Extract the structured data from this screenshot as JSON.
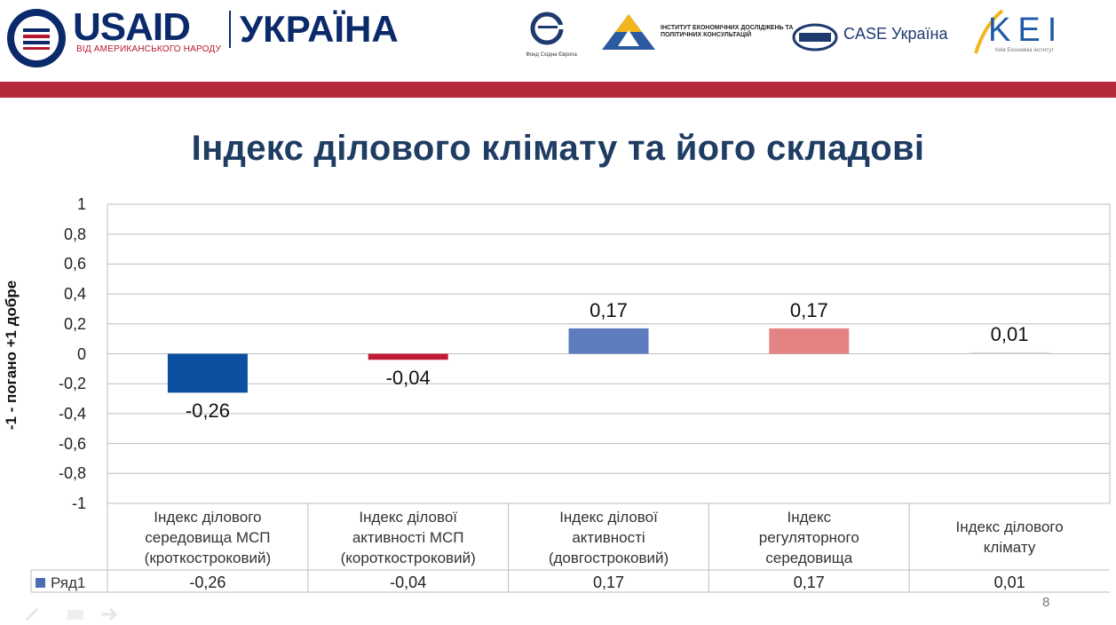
{
  "header": {
    "usaid": "USAID",
    "usaid_sub": "ВІД АМЕРИКАНСЬКОГО НАРОДУ",
    "country": "УКРАЇНА",
    "partners": [
      {
        "name": "Фонд Східна Європа"
      },
      {
        "name": "ІНСТИТУТ ЕКОНОМІЧНИХ ДОСЛІДЖЕНЬ ТА ПОЛІТИЧНИХ КОНСУЛЬТАЦІЙ"
      },
      {
        "name": "CASE Україна"
      },
      {
        "name": "KEI",
        "sub": "Київ Економіка Інститут"
      }
    ]
  },
  "colors": {
    "stripe": "#b5283b",
    "title": "#1f3c63",
    "bar_1": "#0b4fa0",
    "bar_2": "#c01a35",
    "bar_3": "#5d7dbf",
    "bar_4": "#e58384",
    "bar_5": "#d9d9d9",
    "legend_key": "#4a6fb5",
    "usaid_blue": "#0b2a6b"
  },
  "chart_data": {
    "type": "bar",
    "title": "Індекс ділового клімату та його складові",
    "ylabel": "-1 - погано +1 добре",
    "ylim": [
      -1,
      1
    ],
    "ytick_step": 0.2,
    "yticks": [
      "1",
      "0,8",
      "0,6",
      "0,4",
      "0,2",
      "0",
      "-0,2",
      "-0,4",
      "-0,6",
      "-0,8",
      "-1"
    ],
    "grid": true,
    "categories": [
      "Індекс ділового середовища МСП (кротко­строковий)",
      "Індекс ділової активності МСП (короткостроковий)",
      "Індекс ділової активності (довгостроковий)",
      "Індекс регуляторного середовища",
      "Індекс ділового клімату"
    ],
    "category_lines": [
      [
        "Індекс ділового",
        "середовища МСП",
        "(кротко­строковий)"
      ],
      [
        "Індекс ділової",
        "активності МСП",
        "(короткостроковий)"
      ],
      [
        "Індекс ділової",
        "активності",
        "(довгостроковий)"
      ],
      [
        "Індекс",
        "регуляторного",
        "середовища"
      ],
      [
        "Індекс ділового",
        "клімату"
      ]
    ],
    "series": [
      {
        "name": "Ряд1",
        "values": [
          -0.26,
          -0.04,
          0.17,
          0.17,
          0.01
        ]
      }
    ],
    "data_labels": [
      "-0,26",
      "-0,04",
      "0,17",
      "0,17",
      "0,01"
    ],
    "table_values": [
      "-0,26",
      "-0,04",
      "0,17",
      "0,17",
      "0,01"
    ],
    "legend": "bottom-table"
  },
  "footer": {
    "page_number": "8"
  }
}
